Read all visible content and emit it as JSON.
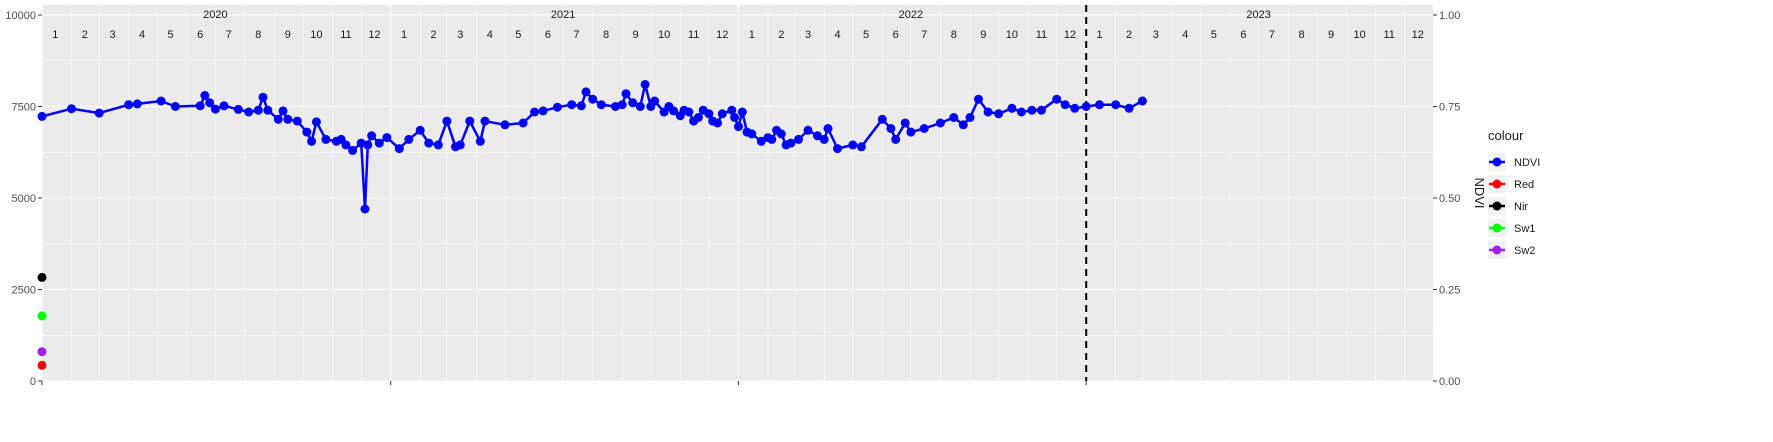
{
  "chart_data": {
    "type": "line",
    "title": "",
    "xlabel": "",
    "ylabel_left": "",
    "ylabel_right": "NDVI",
    "ylim_left": [
      0,
      10000
    ],
    "ylim_right": [
      0,
      1
    ],
    "yticks_left": [
      0,
      2500,
      5000,
      7500,
      10000
    ],
    "yticks_right": [
      "0.00",
      "0.25",
      "0.50",
      "0.75",
      "1.00"
    ],
    "x_range": [
      "2020-01-01",
      "2023-12-31"
    ],
    "x_period_labels": [
      {
        "label": "2020",
        "date": "2020-07-01"
      },
      {
        "label": "2021",
        "date": "2021-07-01"
      },
      {
        "label": "2022",
        "date": "2022-07-01"
      },
      {
        "label": "2023",
        "date": "2023-07-01"
      }
    ],
    "month_labels": [
      "1",
      "2",
      "3",
      "4",
      "5",
      "6",
      "7",
      "8",
      "9",
      "10",
      "11",
      "12"
    ],
    "vline_date": "2023-01-01",
    "grid": true,
    "legend_position": "right",
    "legend_title": "colour",
    "series": [
      {
        "name": "NDVI",
        "color": "#0000ff",
        "points": [
          [
            "2020-01-01",
            7230
          ],
          [
            "2020-02-01",
            7440
          ],
          [
            "2020-03-01",
            7320
          ],
          [
            "2020-04-01",
            7550
          ],
          [
            "2020-04-10",
            7570
          ],
          [
            "2020-05-05",
            7650
          ],
          [
            "2020-05-20",
            7500
          ],
          [
            "2020-06-15",
            7520
          ],
          [
            "2020-06-20",
            7800
          ],
          [
            "2020-06-25",
            7600
          ],
          [
            "2020-07-01",
            7430
          ],
          [
            "2020-07-10",
            7520
          ],
          [
            "2020-07-25",
            7420
          ],
          [
            "2020-08-05",
            7350
          ],
          [
            "2020-08-15",
            7400
          ],
          [
            "2020-08-20",
            7750
          ],
          [
            "2020-08-25",
            7400
          ],
          [
            "2020-09-05",
            7150
          ],
          [
            "2020-09-10",
            7380
          ],
          [
            "2020-09-15",
            7150
          ],
          [
            "2020-09-25",
            7100
          ],
          [
            "2020-10-05",
            6800
          ],
          [
            "2020-10-10",
            6550
          ],
          [
            "2020-10-15",
            7080
          ],
          [
            "2020-10-25",
            6600
          ],
          [
            "2020-11-05",
            6550
          ],
          [
            "2020-11-10",
            6600
          ],
          [
            "2020-11-15",
            6450
          ],
          [
            "2020-11-22",
            6300
          ],
          [
            "2020-12-01",
            6500
          ],
          [
            "2020-12-05",
            4700
          ],
          [
            "2020-12-08",
            6450
          ],
          [
            "2020-12-12",
            6700
          ],
          [
            "2020-12-20",
            6500
          ],
          [
            "2020-12-28",
            6650
          ],
          [
            "2021-01-10",
            6350
          ],
          [
            "2021-01-20",
            6600
          ],
          [
            "2021-02-01",
            6850
          ],
          [
            "2021-02-10",
            6500
          ],
          [
            "2021-02-20",
            6450
          ],
          [
            "2021-03-01",
            7100
          ],
          [
            "2021-03-10",
            6400
          ],
          [
            "2021-03-15",
            6450
          ],
          [
            "2021-03-25",
            7100
          ],
          [
            "2021-04-05",
            6550
          ],
          [
            "2021-04-10",
            7100
          ],
          [
            "2021-05-01",
            7000
          ],
          [
            "2021-05-20",
            7050
          ],
          [
            "2021-06-01",
            7350
          ],
          [
            "2021-06-10",
            7380
          ],
          [
            "2021-06-25",
            7480
          ],
          [
            "2021-07-10",
            7550
          ],
          [
            "2021-07-20",
            7520
          ],
          [
            "2021-07-25",
            7900
          ],
          [
            "2021-08-01",
            7700
          ],
          [
            "2021-08-10",
            7550
          ],
          [
            "2021-08-25",
            7500
          ],
          [
            "2021-09-01",
            7550
          ],
          [
            "2021-09-05",
            7850
          ],
          [
            "2021-09-12",
            7600
          ],
          [
            "2021-09-20",
            7500
          ],
          [
            "2021-09-25",
            8100
          ],
          [
            "2021-10-01",
            7500
          ],
          [
            "2021-10-05",
            7650
          ],
          [
            "2021-10-15",
            7350
          ],
          [
            "2021-10-20",
            7500
          ],
          [
            "2021-10-25",
            7380
          ],
          [
            "2021-11-01",
            7250
          ],
          [
            "2021-11-05",
            7400
          ],
          [
            "2021-11-10",
            7350
          ],
          [
            "2021-11-15",
            7100
          ],
          [
            "2021-11-20",
            7200
          ],
          [
            "2021-11-25",
            7400
          ],
          [
            "2021-12-01",
            7300
          ],
          [
            "2021-12-05",
            7100
          ],
          [
            "2021-12-10",
            7050
          ],
          [
            "2021-12-15",
            7300
          ],
          [
            "2021-12-25",
            7400
          ],
          [
            "2021-12-28",
            7200
          ],
          [
            "2022-01-01",
            6950
          ],
          [
            "2022-01-05",
            7350
          ],
          [
            "2022-01-10",
            6800
          ],
          [
            "2022-01-15",
            6750
          ],
          [
            "2022-01-25",
            6550
          ],
          [
            "2022-02-01",
            6650
          ],
          [
            "2022-02-05",
            6600
          ],
          [
            "2022-02-10",
            6850
          ],
          [
            "2022-02-15",
            6750
          ],
          [
            "2022-02-20",
            6450
          ],
          [
            "2022-02-25",
            6500
          ],
          [
            "2022-03-05",
            6600
          ],
          [
            "2022-03-15",
            6850
          ],
          [
            "2022-03-25",
            6700
          ],
          [
            "2022-04-01",
            6600
          ],
          [
            "2022-04-05",
            6900
          ],
          [
            "2022-04-15",
            6350
          ],
          [
            "2022-05-01",
            6450
          ],
          [
            "2022-05-10",
            6400
          ],
          [
            "2022-06-01",
            7150
          ],
          [
            "2022-06-10",
            6900
          ],
          [
            "2022-06-15",
            6600
          ],
          [
            "2022-06-25",
            7050
          ],
          [
            "2022-07-01",
            6800
          ],
          [
            "2022-07-15",
            6900
          ],
          [
            "2022-08-01",
            7050
          ],
          [
            "2022-08-15",
            7200
          ],
          [
            "2022-08-25",
            7000
          ],
          [
            "2022-09-01",
            7200
          ],
          [
            "2022-09-10",
            7700
          ],
          [
            "2022-09-20",
            7350
          ],
          [
            "2022-10-01",
            7300
          ],
          [
            "2022-10-15",
            7450
          ],
          [
            "2022-10-25",
            7350
          ],
          [
            "2022-11-05",
            7400
          ],
          [
            "2022-11-15",
            7400
          ],
          [
            "2022-12-01",
            7700
          ],
          [
            "2022-12-10",
            7550
          ],
          [
            "2022-12-20",
            7450
          ],
          [
            "2023-01-01",
            7500
          ],
          [
            "2023-01-15",
            7550
          ],
          [
            "2023-02-01",
            7550
          ],
          [
            "2023-02-15",
            7450
          ],
          [
            "2023-03-01",
            7650
          ]
        ]
      },
      {
        "name": "Red",
        "color": "#ff0000",
        "points": [
          [
            "2020-01-01",
            430
          ]
        ]
      },
      {
        "name": "Nir",
        "color": "#000000",
        "points": [
          [
            "2020-01-01",
            2830
          ]
        ]
      },
      {
        "name": "Sw1",
        "color": "#00ff00",
        "points": [
          [
            "2020-01-01",
            1780
          ]
        ]
      },
      {
        "name": "Sw2",
        "color": "#a020f0",
        "points": [
          [
            "2020-01-01",
            800
          ]
        ]
      }
    ]
  }
}
